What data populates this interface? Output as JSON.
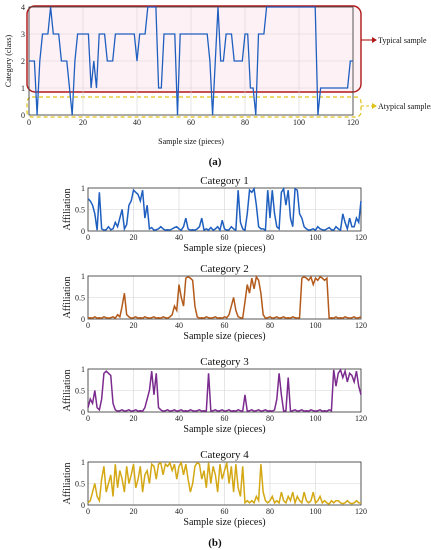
{
  "panel_labels": {
    "a": "(a)",
    "b": "(b)"
  },
  "chart_data": [
    {
      "type": "line",
      "ylabel": "Category (class)",
      "xlabel": "Sample size (pieces)",
      "xlim": [
        0,
        120
      ],
      "ylim": [
        0,
        4
      ],
      "xticks": [
        "0",
        "20",
        "40",
        "60",
        "80",
        "100",
        "120"
      ],
      "yticks": [
        "0",
        "1",
        "2",
        "3",
        "4"
      ],
      "grid": true,
      "color": "#1f5fbf",
      "annotations": {
        "typical": "Typical sample",
        "atypical": "Atypical samples"
      },
      "y": [
        2,
        2,
        2,
        0,
        2,
        3,
        3,
        3,
        4,
        3,
        3,
        3,
        2,
        2,
        2,
        1,
        0,
        2,
        3,
        3,
        3,
        3,
        3,
        1,
        2,
        1,
        3,
        3,
        3,
        2,
        2,
        2,
        3,
        3,
        3,
        3,
        3,
        3,
        3,
        3,
        2,
        3,
        3,
        3,
        4,
        4,
        4,
        4,
        1,
        1,
        3,
        3,
        3,
        3,
        3,
        0,
        3,
        3,
        3,
        3,
        3,
        3,
        3,
        3,
        3,
        3,
        3,
        2,
        0,
        2,
        4,
        2,
        2,
        3,
        3,
        3,
        2,
        2,
        2,
        2,
        3,
        3,
        1,
        1,
        0,
        3,
        3,
        3,
        4,
        4,
        4,
        4,
        4,
        4,
        4,
        4,
        4,
        4,
        4,
        4,
        4,
        4,
        4,
        4,
        4,
        4,
        4,
        0,
        1,
        1,
        1,
        1,
        1,
        1,
        1,
        1,
        1,
        1,
        1,
        2,
        2
      ]
    },
    {
      "type": "line",
      "title": "Category 1",
      "ylabel": "Affiliation",
      "xlabel": "Sample size (pieces)",
      "xlim": [
        0,
        120
      ],
      "ylim": [
        0,
        1
      ],
      "xticks": [
        "0",
        "20",
        "40",
        "60",
        "80",
        "100",
        "120"
      ],
      "yticks": [
        "0",
        "0.5",
        "1"
      ],
      "grid": true,
      "color": "#1f5fbf",
      "y": [
        0.75,
        0.7,
        0.6,
        0.4,
        0.02,
        0.9,
        0.05,
        0.02,
        0.03,
        0.1,
        0.03,
        0.05,
        0.2,
        0.1,
        0.3,
        0.5,
        0.05,
        0.15,
        0.6,
        0.7,
        0.95,
        0.9,
        0.85,
        0.7,
        0.95,
        0.3,
        0.6,
        0.05,
        0.08,
        0.02,
        0.03,
        0.05,
        0.1,
        0.05,
        0.02,
        0.03,
        0.02,
        0.05,
        0.08,
        0.1,
        0.05,
        0.02,
        0.1,
        0.3,
        0.05,
        0.02,
        0.03,
        0.02,
        0.05,
        0.1,
        0.3,
        0.02,
        0.05,
        0.02,
        0.08,
        0.02,
        0.05,
        0.1,
        0.02,
        0.25,
        0.05,
        0.02,
        0.03,
        0.1,
        0.05,
        0.02,
        0.95,
        0.2,
        0.05,
        0.02,
        0.4,
        0.95,
        0.9,
        0.98,
        0.6,
        0.1,
        0.05,
        0.05,
        0.02,
        0.95,
        0.3,
        0.95,
        0.4,
        0.1,
        0.05,
        0.9,
        0.98,
        0.6,
        0.95,
        0.3,
        0.1,
        0.98,
        0.95,
        0.4,
        0.3,
        0.1,
        0.05,
        0.02,
        0.03,
        0.05,
        0.02,
        0.1,
        0.05,
        0.03,
        0.02,
        0.05,
        0.08,
        0.03,
        0.02,
        0.1,
        0.05,
        0.02,
        0.4,
        0.2,
        0.05,
        0.3,
        0.1,
        0.1,
        0.3,
        0.2,
        0.7
      ]
    },
    {
      "type": "line",
      "title": "Category 2",
      "ylabel": "Affiliation",
      "xlabel": "Sample size (pieces)",
      "xlim": [
        0,
        120
      ],
      "ylim": [
        0,
        1
      ],
      "xticks": [
        "0",
        "20",
        "40",
        "60",
        "80",
        "100",
        "120"
      ],
      "yticks": [
        "0",
        "0.5",
        "1"
      ],
      "grid": true,
      "color": "#b35a1b",
      "y": [
        0.02,
        0.03,
        0.02,
        0.05,
        0.02,
        0.03,
        0.02,
        0.05,
        0.03,
        0.02,
        0.03,
        0.05,
        0.02,
        0.1,
        0.05,
        0.3,
        0.6,
        0.1,
        0.05,
        0.02,
        0.03,
        0.05,
        0.02,
        0.03,
        0.02,
        0.05,
        0.03,
        0.02,
        0.03,
        0.05,
        0.02,
        0.03,
        0.02,
        0.05,
        0.03,
        0.02,
        0.05,
        0.1,
        0.3,
        0.2,
        0.8,
        0.5,
        0.3,
        0.95,
        0.98,
        0.95,
        0.9,
        0.3,
        0.05,
        0.02,
        0.03,
        0.02,
        0.05,
        0.03,
        0.02,
        0.03,
        0.05,
        0.02,
        0.03,
        0.02,
        0.05,
        0.03,
        0.1,
        0.3,
        0.5,
        0.2,
        0.05,
        0.03,
        0.02,
        0.4,
        0.8,
        0.6,
        0.95,
        0.7,
        0.98,
        0.9,
        0.6,
        0.1,
        0.02,
        0.03,
        0.05,
        0.02,
        0.03,
        0.05,
        0.02,
        0.03,
        0.05,
        0.02,
        0.03,
        0.02,
        0.05,
        0.03,
        0.02,
        0.03,
        0.95,
        0.98,
        0.95,
        0.9,
        0.98,
        0.8,
        0.95,
        0.9,
        0.98,
        0.95,
        0.9,
        0.95,
        0.02,
        0.03,
        0.02,
        0.05,
        0.02,
        0.03,
        0.02,
        0.05,
        0.03,
        0.02,
        0.03,
        0.05,
        0.02,
        0.03,
        0.05
      ]
    },
    {
      "type": "line",
      "title": "Category 3",
      "ylabel": "Affiliation",
      "xlabel": "Sample size (pieces)",
      "xlim": [
        0,
        120
      ],
      "ylim": [
        0,
        1
      ],
      "xticks": [
        "0",
        "20",
        "40",
        "60",
        "80",
        "100",
        "120"
      ],
      "yticks": [
        "0",
        "0.5",
        "1"
      ],
      "grid": true,
      "color": "#7b2a8e",
      "y": [
        0.1,
        0.3,
        0.2,
        0.5,
        0.1,
        0.05,
        0.3,
        0.9,
        0.95,
        0.9,
        0.85,
        0.2,
        0.05,
        0.02,
        0.03,
        0.05,
        0.02,
        0.03,
        0.05,
        0.02,
        0.03,
        0.05,
        0.02,
        0.03,
        0.02,
        0.1,
        0.3,
        0.5,
        0.95,
        0.4,
        0.9,
        0.1,
        0.05,
        0.02,
        0.03,
        0.05,
        0.02,
        0.03,
        0.05,
        0.02,
        0.03,
        0.05,
        0.02,
        0.03,
        0.02,
        0.05,
        0.03,
        0.02,
        0.03,
        0.05,
        0.02,
        0.03,
        0.02,
        0.9,
        0.02,
        0.03,
        0.05,
        0.02,
        0.03,
        0.05,
        0.02,
        0.03,
        0.05,
        0.02,
        0.03,
        0.02,
        0.05,
        0.03,
        0.02,
        0.4,
        0.02,
        0.03,
        0.05,
        0.02,
        0.03,
        0.05,
        0.02,
        0.03,
        0.05,
        0.02,
        0.03,
        0.02,
        0.05,
        0.3,
        0.9,
        0.4,
        0.02,
        0.03,
        0.8,
        0.02,
        0.03,
        0.05,
        0.02,
        0.03,
        0.05,
        0.02,
        0.03,
        0.02,
        0.05,
        0.03,
        0.02,
        0.03,
        0.05,
        0.02,
        0.03,
        0.02,
        0.05,
        0.03,
        0.98,
        0.6,
        0.9,
        0.98,
        0.8,
        0.95,
        0.7,
        0.9,
        0.85,
        0.7,
        0.95,
        0.6,
        0.4
      ]
    },
    {
      "type": "line",
      "title": "Category 4",
      "ylabel": "Affiliation",
      "xlabel": "Sample size (pieces)",
      "xlim": [
        0,
        120
      ],
      "ylim": [
        0,
        1
      ],
      "xticks": [
        "0",
        "20",
        "40",
        "60",
        "80",
        "100",
        "120"
      ],
      "yticks": [
        "0",
        "0.5",
        "1"
      ],
      "grid": true,
      "color": "#d4a814",
      "y": [
        0.05,
        0.1,
        0.3,
        0.5,
        0.2,
        0.1,
        0.6,
        0.9,
        0.3,
        0.5,
        0.7,
        0.2,
        0.95,
        0.4,
        0.8,
        0.6,
        0.3,
        0.9,
        0.5,
        0.7,
        0.95,
        0.4,
        0.6,
        0.9,
        0.3,
        0.7,
        0.8,
        0.5,
        0.95,
        0.9,
        0.6,
        0.95,
        0.98,
        0.7,
        0.95,
        0.9,
        0.98,
        0.8,
        0.95,
        0.6,
        0.9,
        0.98,
        0.7,
        0.95,
        0.6,
        0.3,
        0.5,
        0.9,
        0.98,
        0.95,
        0.6,
        0.8,
        0.4,
        0.98,
        0.5,
        0.9,
        0.7,
        0.3,
        0.95,
        0.6,
        0.8,
        0.98,
        0.5,
        0.9,
        0.3,
        0.95,
        0.4,
        0.2,
        0.9,
        0.05,
        0.1,
        0.05,
        0.1,
        0.05,
        0.2,
        0.1,
        0.95,
        0.3,
        0.1,
        0.05,
        0.1,
        0.2,
        0.05,
        0.1,
        0.05,
        0.3,
        0.1,
        0.05,
        0.2,
        0.1,
        0.3,
        0.05,
        0.2,
        0.1,
        0.05,
        0.3,
        0.1,
        0.05,
        0.1,
        0.3,
        0.05,
        0.1,
        0.2,
        0.05,
        0.1,
        0.05,
        0.02,
        0.1,
        0.05,
        0.1,
        0.1,
        0.05,
        0.03,
        0.05,
        0.1,
        0.05,
        0.03,
        0.05,
        0.1,
        0.05,
        0.05
      ]
    }
  ]
}
